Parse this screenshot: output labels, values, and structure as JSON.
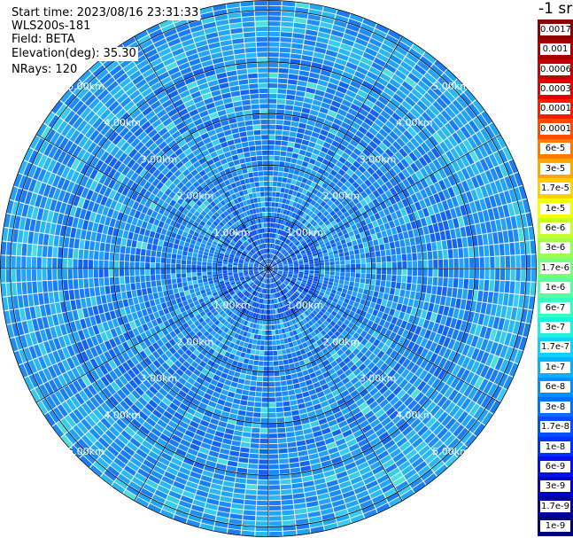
{
  "header": {
    "start_time": "Start time: 2023/08/16 23:31:33",
    "instrument": "WLS200s-181",
    "field": "Field: BETA",
    "elevation": "Elevation(deg): 35.30",
    "nrays": "NRays: 120"
  },
  "colorbar": {
    "title": "-1 sr",
    "bins": [
      {
        "label": "0.0017",
        "color": "#8b0000"
      },
      {
        "label": "0.001",
        "color": "#a50000"
      },
      {
        "label": "0.0006",
        "color": "#c40000"
      },
      {
        "label": "0.0003",
        "color": "#e40000"
      },
      {
        "label": "0.00017",
        "color": "#ff1a00"
      },
      {
        "label": "0.0001",
        "color": "#ff4a00"
      },
      {
        "label": "6e-5",
        "color": "#ff7a00"
      },
      {
        "label": "3e-5",
        "color": "#ffa600"
      },
      {
        "label": "1.7e-5",
        "color": "#ffd000"
      },
      {
        "label": "1e-5",
        "color": "#f4ff00"
      },
      {
        "label": "6e-6",
        "color": "#c6ff2c"
      },
      {
        "label": "3e-6",
        "color": "#9cff56"
      },
      {
        "label": "1.7e-6",
        "color": "#78ff7e"
      },
      {
        "label": "1e-6",
        "color": "#56ffa0"
      },
      {
        "label": "6e-7",
        "color": "#36ffc2"
      },
      {
        "label": "3e-7",
        "color": "#1ef0e0"
      },
      {
        "label": "1.7e-7",
        "color": "#10d0ff"
      },
      {
        "label": "1e-7",
        "color": "#00b2ff"
      },
      {
        "label": "6e-8",
        "color": "#0090ff"
      },
      {
        "label": "3e-8",
        "color": "#0070ff"
      },
      {
        "label": "1.7e-8",
        "color": "#0050ff"
      },
      {
        "label": "1e-8",
        "color": "#0030ff"
      },
      {
        "label": "6e-9",
        "color": "#0010f0"
      },
      {
        "label": "3e-9",
        "color": "#0000c8"
      },
      {
        "label": "1.7e-9",
        "color": "#00009a"
      },
      {
        "label": "1e-9",
        "color": "#000070"
      }
    ]
  },
  "chart_data": {
    "type": "heatmap",
    "projection": "polar PPI",
    "field": "BETA",
    "elevation_deg": 35.3,
    "n_rays": 120,
    "max_range_km": 5.2,
    "range_rings_km": [
      1.0,
      2.0,
      3.0,
      4.0,
      5.0
    ],
    "ring_labels": [
      "1.00km",
      "2.00km",
      "3.00km",
      "4.00km",
      "5.00km"
    ],
    "spokes_deg": [
      0,
      30,
      60,
      90,
      120,
      150,
      180,
      210,
      240,
      270,
      300,
      330
    ],
    "dominant_values_sr-1": [
      "3e-8",
      "6e-8",
      "1e-7",
      "1.7e-7"
    ],
    "colors": {
      "background": "#ffffff",
      "ring": "#000000",
      "spoke": "#000000"
    }
  }
}
